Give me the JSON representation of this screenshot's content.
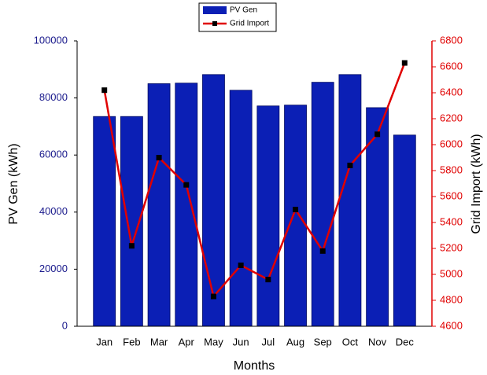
{
  "chart_data": {
    "type": "bar",
    "categories": [
      "Jan",
      "Feb",
      "Mar",
      "Apr",
      "May",
      "Jun",
      "Jul",
      "Aug",
      "Sep",
      "Oct",
      "Nov",
      "Dec"
    ],
    "series": [
      {
        "name": "PV Gen",
        "color": "#0b1fb5",
        "values": [
          73500,
          73500,
          85000,
          85200,
          88200,
          82700,
          77200,
          77500,
          85500,
          88200,
          76600,
          67000
        ]
      },
      {
        "name": "Grid Import",
        "color": "#e00000",
        "type": "line",
        "axis": "y2",
        "values": [
          6420,
          5220,
          5900,
          5690,
          4830,
          5070,
          4960,
          5500,
          5180,
          5840,
          6080,
          6630
        ]
      }
    ],
    "xlabel": "Months",
    "ylabel": "PV Gen (kWh)",
    "y2label": "Grid Import (kWh)",
    "ylim": [
      0,
      100000
    ],
    "yticks": [
      0,
      20000,
      40000,
      60000,
      80000,
      100000
    ],
    "y2lim": [
      4600,
      6800
    ],
    "y2ticks": [
      4600,
      4800,
      5000,
      5200,
      5400,
      5600,
      5800,
      6000,
      6200,
      6400,
      6600,
      6800
    ],
    "ytick_color": "#1a1a8c",
    "y2tick_color": "#e00000"
  }
}
